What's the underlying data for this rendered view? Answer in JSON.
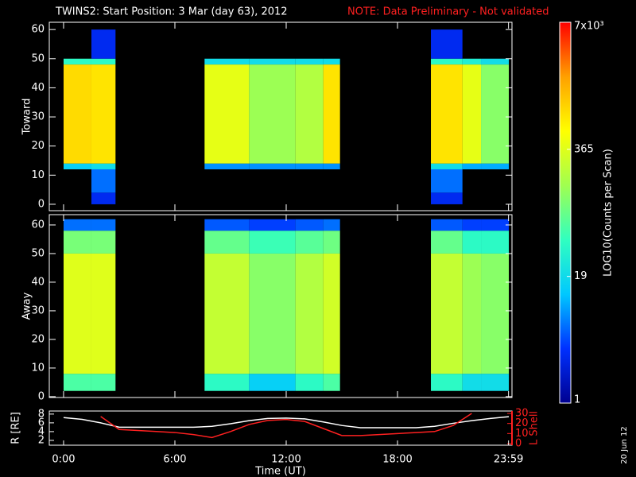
{
  "header": {
    "title": "TWINS2: Start Position:  3 Mar (day  63), 2012",
    "note": "NOTE: Data Preliminary - Not validated",
    "stamp": "20 Jun 12"
  },
  "colorbar": {
    "label": "LOG10(Counts per Scan)",
    "clim": [
      1,
      7000
    ],
    "log": true,
    "ticks": [
      1,
      19,
      365,
      {
        "value": 7000,
        "label": "7x10³"
      }
    ],
    "colorscale": [
      "#000090",
      "#0030ff",
      "#00c8ff",
      "#30ffc0",
      "#a0ff50",
      "#ffff00",
      "#ffa000",
      "#ff0000"
    ]
  },
  "chart_data": [
    {
      "type": "heatmap",
      "ylabel": "Toward",
      "xlim": [
        -0.77,
        24.17
      ],
      "ylim": [
        -2.2,
        62.5
      ],
      "yticks": [
        0,
        10,
        20,
        30,
        40,
        50,
        60
      ],
      "background": "#000000",
      "time_edges": [
        0,
        1.5,
        2.8,
        7.6,
        10,
        12.5,
        14,
        14.9,
        19.8,
        21.5,
        22.5,
        24
      ],
      "angle_edges": [
        0,
        4,
        12,
        14,
        48,
        50,
        60
      ],
      "values": [
        [
          null,
          3,
          null,
          null,
          null,
          null,
          null,
          null,
          3,
          null,
          null
        ],
        [
          null,
          6,
          null,
          null,
          null,
          null,
          null,
          null,
          6,
          null,
          null
        ],
        [
          15,
          20,
          null,
          8,
          8,
          8,
          8,
          null,
          20,
          10,
          10
        ],
        [
          900,
          800,
          null,
          400,
          150,
          200,
          800,
          null,
          800,
          400,
          120
        ],
        [
          40,
          40,
          null,
          20,
          20,
          20,
          20,
          null,
          40,
          30,
          20
        ],
        [
          null,
          3,
          null,
          null,
          null,
          null,
          null,
          null,
          3,
          null,
          null
        ]
      ]
    },
    {
      "type": "heatmap",
      "ylabel": "Away",
      "xlim": [
        -0.77,
        24.17
      ],
      "ylim": [
        -0.3,
        63.6
      ],
      "yticks": [
        0,
        10,
        20,
        30,
        40,
        50,
        60
      ],
      "background": "#000000",
      "time_edges": [
        0,
        1.5,
        2.8,
        7.6,
        10,
        12.5,
        14,
        14.9,
        19.8,
        21.5,
        22.5,
        24
      ],
      "angle_edges": [
        2,
        8,
        50,
        58,
        62
      ],
      "values": [
        [
          60,
          60,
          null,
          40,
          15,
          40,
          60,
          null,
          40,
          20,
          20
        ],
        [
          365,
          365,
          null,
          250,
          120,
          200,
          300,
          null,
          250,
          150,
          120
        ],
        [
          100,
          100,
          null,
          80,
          50,
          70,
          90,
          null,
          80,
          40,
          40
        ],
        [
          6,
          6,
          null,
          5,
          4,
          5,
          6,
          null,
          5,
          4,
          4
        ]
      ]
    },
    {
      "type": "line",
      "ylabel": "R [RE]",
      "y2label": "L Shell",
      "xlabel": "Time (UT)",
      "xlim": [
        -0.77,
        24.17
      ],
      "xticks": [
        {
          "value": 0,
          "label": "0:00"
        },
        {
          "value": 6,
          "label": "6:00"
        },
        {
          "value": 12,
          "label": "12:00"
        },
        {
          "value": 18,
          "label": "18:00"
        },
        {
          "value": 23.983,
          "label": "23:59"
        }
      ],
      "ylim": [
        0.9,
        8.7
      ],
      "yticks": [
        2,
        4,
        6,
        8
      ],
      "y2lim": [
        -1.6,
        32.4
      ],
      "y2ticks": [
        0,
        10,
        20,
        30
      ],
      "y2color": "#ff2020",
      "x": [
        0,
        1,
        2,
        3,
        4,
        5,
        6,
        7,
        8,
        9,
        10,
        11,
        12,
        13,
        14,
        15,
        16,
        17,
        18,
        19,
        20,
        21,
        22,
        23,
        24
      ],
      "series": [
        {
          "color": "#ffffff",
          "values": [
            7.2,
            6.8,
            6.0,
            5.0,
            5.0,
            5.0,
            5.0,
            5.0,
            5.2,
            5.8,
            6.5,
            7.0,
            7.1,
            6.9,
            6.2,
            5.4,
            4.9,
            4.9,
            4.9,
            4.9,
            5.2,
            5.9,
            6.5,
            7.0,
            7.4
          ]
        },
        {
          "color": "#ff2020",
          "axis": "y2",
          "values": [
            null,
            null,
            27,
            14,
            13,
            12,
            11,
            9,
            6,
            12,
            19,
            23,
            24,
            22,
            15,
            8,
            8,
            9,
            10,
            11,
            12,
            18,
            30,
            null,
            null
          ]
        }
      ]
    }
  ]
}
